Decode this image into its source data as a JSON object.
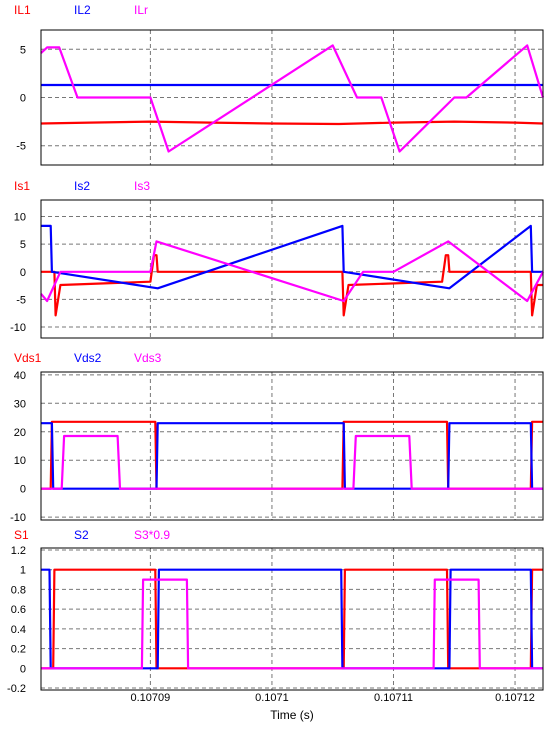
{
  "chart_data": [
    {
      "type": "line",
      "ylim": [
        -7,
        7
      ],
      "yticks": [
        5,
        0,
        -5
      ],
      "series": [
        {
          "name": "IL1",
          "color": "#ff0000",
          "x": [
            0.107081,
            0.107085,
            0.10709,
            0.107095,
            0.1071,
            0.1071055,
            0.10711,
            0.107115,
            0.10712,
            0.1071223
          ],
          "y": [
            -2.7,
            -2.6,
            -2.5,
            -2.6,
            -2.7,
            -2.75,
            -2.6,
            -2.5,
            -2.6,
            -2.7
          ]
        },
        {
          "name": "IL2",
          "color": "#0000ff",
          "x": [
            0.107081,
            0.1071223
          ],
          "y": [
            1.3,
            1.3
          ]
        },
        {
          "name": "ILr",
          "color": "#ff00ff",
          "x": [
            0.107081,
            0.1070815,
            0.1070825,
            0.107084,
            0.107086,
            0.10709,
            0.1070915,
            0.107105,
            0.107107,
            0.107109,
            0.1071105,
            0.107115,
            0.107116,
            0.107121,
            0.1071223
          ],
          "y": [
            4.6,
            5.2,
            5.2,
            0.0,
            0.0,
            0.0,
            -5.6,
            5.4,
            0.0,
            0.0,
            -5.6,
            0.0,
            0.0,
            5.4,
            0.0
          ]
        }
      ]
    },
    {
      "type": "line",
      "ylim": [
        -12,
        13
      ],
      "yticks": [
        10,
        5,
        0,
        -5,
        -10
      ],
      "series": [
        {
          "name": "Is1",
          "color": "#ff0000",
          "x": [
            0.107081,
            0.1070818,
            0.1070821,
            0.1070822,
            0.1070826,
            0.10709,
            0.1070903,
            0.1070905,
            0.1070906,
            0.107091,
            0.107105,
            0.1071058,
            0.1071059,
            0.1071063,
            0.107114,
            0.1071143,
            0.1071145,
            0.1071146,
            0.107115,
            0.107121,
            0.1071213,
            0.1071214,
            0.1071218,
            0.1071223
          ],
          "y": [
            0.0,
            0.0,
            0.0,
            -7.9,
            -2.4,
            -1.8,
            3.0,
            3.0,
            0.0,
            0.0,
            0.0,
            0.0,
            -7.9,
            -2.4,
            -1.8,
            3.0,
            3.0,
            0.0,
            0.0,
            0.0,
            0.0,
            -7.9,
            -2.4,
            -2.4
          ]
        },
        {
          "name": "Is2",
          "color": "#0000ff",
          "x": [
            0.107081,
            0.1070818,
            0.1070819,
            0.1070906,
            0.1071058,
            0.1071059,
            0.1071146,
            0.1071213,
            0.1071214,
            0.1071223
          ],
          "y": [
            8.3,
            8.3,
            0.0,
            -3.0,
            8.3,
            0.0,
            -3.0,
            8.3,
            0.0,
            0.0
          ]
        },
        {
          "name": "Is3",
          "color": "#ff00ff",
          "x": [
            0.107081,
            0.1070815,
            0.1070826,
            0.10709,
            0.1070905,
            0.1071059,
            0.1071075,
            0.10711,
            0.1071145,
            0.107121,
            0.1071223
          ],
          "y": [
            -4.0,
            -5.3,
            0.0,
            0.0,
            5.5,
            -5.3,
            0.0,
            0.0,
            5.5,
            -5.3,
            0.0
          ]
        }
      ]
    },
    {
      "type": "line",
      "ylim": [
        -11,
        41
      ],
      "yticks": [
        40,
        30,
        20,
        10,
        0,
        -10
      ],
      "series": [
        {
          "name": "Vds1",
          "color": "#ff0000",
          "x": [
            0.107081,
            0.1070818,
            0.1070819,
            0.1070904,
            0.1070905,
            0.1071058,
            0.1071059,
            0.1071144,
            0.1071145,
            0.1071213,
            0.1071214,
            0.1071223
          ],
          "y": [
            0.0,
            0.0,
            23.5,
            23.5,
            0.0,
            0.0,
            23.5,
            23.5,
            0.0,
            0.0,
            23.5,
            23.5
          ]
        },
        {
          "name": "Vds2",
          "color": "#0000ff",
          "x": [
            0.107081,
            0.1070819,
            0.107082,
            0.1070905,
            0.1070906,
            0.1071059,
            0.107106,
            0.1071145,
            0.1071146,
            0.1071213,
            0.1071214,
            0.1071223
          ],
          "y": [
            23.0,
            23.0,
            0.0,
            0.0,
            23.0,
            23.0,
            0.0,
            0.0,
            23.0,
            23.0,
            0.0,
            0.0
          ]
        },
        {
          "name": "Vds3",
          "color": "#ff00ff",
          "x": [
            0.107081,
            0.1070827,
            0.1070829,
            0.1070873,
            0.1070875,
            0.1071067,
            0.1071069,
            0.1071113,
            0.1071115,
            0.1071223
          ],
          "y": [
            0.0,
            0.0,
            18.5,
            18.5,
            0.0,
            0.0,
            18.5,
            18.5,
            0.0,
            0.0
          ]
        }
      ]
    },
    {
      "type": "line",
      "ylim": [
        -0.22,
        1.22
      ],
      "yticks": [
        1.2,
        1,
        0.8,
        0.6,
        0.4,
        0.2,
        0,
        -0.2
      ],
      "xticks": [
        0.10709,
        0.1071,
        0.10711,
        0.10712
      ],
      "xticklabels": [
        "0.10709",
        "0.1071",
        "0.10711",
        "0.10712"
      ],
      "xlabel": "Time (s)",
      "series": [
        {
          "name": "S1",
          "color": "#ff0000",
          "x": [
            0.107081,
            0.107082,
            0.1070821,
            0.1070904,
            0.1070905,
            0.1071059,
            0.107106,
            0.1071144,
            0.1071145,
            0.1071213,
            0.1071214,
            0.1071223
          ],
          "y": [
            0,
            0,
            1,
            1,
            0,
            0,
            1,
            1,
            0,
            0,
            1,
            1
          ]
        },
        {
          "name": "S2",
          "color": "#0000ff",
          "x": [
            0.107081,
            0.1070817,
            0.1070818,
            0.1070906,
            0.1070907,
            0.1071057,
            0.1071058,
            0.1071146,
            0.1071147,
            0.1071213,
            0.1071214,
            0.1071223
          ],
          "y": [
            1,
            1,
            0,
            0,
            1,
            1,
            0,
            0,
            1,
            1,
            0,
            0
          ]
        },
        {
          "name": "S3*0.9",
          "color": "#ff00ff",
          "x": [
            0.107081,
            0.1070893,
            0.1070894,
            0.107093,
            0.1070931,
            0.1071133,
            0.1071134,
            0.107117,
            0.1071171,
            0.1071223
          ],
          "y": [
            0,
            0,
            0.9,
            0.9,
            0,
            0,
            0.9,
            0.9,
            0,
            0
          ]
        }
      ]
    }
  ]
}
